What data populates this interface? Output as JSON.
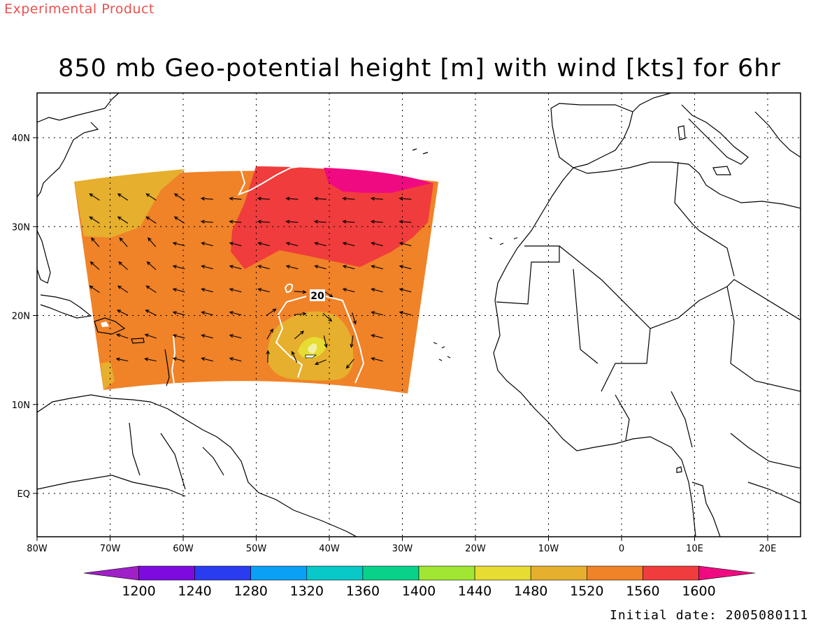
{
  "header": {
    "product_label": "Experimental Product",
    "title": "850 mb Geo-potential height [m] with wind [kts] for 6hr",
    "init_date": "Initial date: 2005080111"
  },
  "map": {
    "lon_ticks": [
      "80W",
      "70W",
      "60W",
      "50W",
      "40W",
      "30W",
      "20W",
      "10W",
      "0",
      "10E",
      "20E"
    ],
    "lat_ticks": [
      "40N",
      "30N",
      "20N",
      "10N",
      "EQ"
    ],
    "contour_label": "20",
    "land_outline_color": "#000000",
    "grid_style": "dotted"
  },
  "colorbar": {
    "levels": [
      "1200",
      "1240",
      "1280",
      "1320",
      "1360",
      "1400",
      "1440",
      "1480",
      "1520",
      "1560",
      "1600"
    ],
    "colors": [
      "#a020c8",
      "#7d0be0",
      "#2a3cf0",
      "#0aa0f5",
      "#08c8c8",
      "#08d28a",
      "#a0e632",
      "#e6dc32",
      "#e6af2d",
      "#f08228",
      "#f03c3c",
      "#f00a82"
    ]
  }
}
